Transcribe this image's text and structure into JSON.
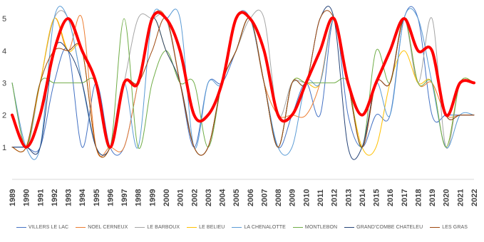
{
  "chart_data": {
    "type": "line",
    "title": "",
    "xlabel": "",
    "ylabel": "",
    "x": [
      "1989",
      "1990",
      "1991",
      "1992",
      "1993",
      "1994",
      "1995",
      "1996",
      "1997",
      "1998",
      "1999",
      "2000",
      "2001",
      "2002",
      "2003",
      "2004",
      "2005",
      "2006",
      "2007",
      "2008",
      "2009",
      "2010",
      "2011",
      "2012",
      "2013",
      "2014",
      "2015",
      "2016",
      "2017",
      "2018",
      "2019",
      "2020",
      "2021",
      "2022"
    ],
    "yticks": [
      1,
      2,
      3,
      4,
      5
    ],
    "ylim": [
      0,
      5.4
    ],
    "grid": false,
    "legend_position": "bottom",
    "series": [
      {
        "name": "VILLERS LE LAC",
        "color": "#4472c4",
        "width": 1,
        "values": [
          1,
          1,
          1,
          3,
          4,
          1,
          3,
          1,
          1,
          3,
          5,
          5,
          3,
          1,
          3,
          3,
          4,
          5,
          3,
          1,
          2,
          3,
          2,
          5,
          2,
          1,
          2,
          2,
          5,
          5,
          2,
          2,
          2,
          2
        ]
      },
      {
        "name": "NOEL CERNEUX",
        "color": "#ed7d31",
        "width": 1,
        "values": [
          1,
          1,
          3,
          5,
          4,
          5,
          1,
          1,
          1,
          3,
          5,
          5,
          3,
          1,
          1,
          3,
          4,
          5,
          3,
          2,
          2,
          2,
          3,
          5,
          3,
          1,
          3,
          3,
          5,
          3,
          3,
          2,
          2,
          2
        ]
      },
      {
        "name": "LE BARBOUX",
        "color": "#a5a5a5",
        "width": 1,
        "values": [
          3,
          1,
          3,
          5,
          5,
          3,
          1,
          1,
          3,
          5,
          5,
          5,
          3,
          1,
          1,
          3,
          4,
          5,
          5,
          2,
          3,
          3,
          3,
          5,
          3,
          1,
          3,
          3,
          5,
          3,
          5,
          1,
          3,
          3
        ]
      },
      {
        "name": "LE BELIEU",
        "color": "#ffc000",
        "width": 1,
        "values": [
          1,
          1,
          3,
          5,
          4,
          4,
          1,
          1,
          3,
          3,
          5,
          4,
          3,
          1,
          1,
          3,
          4,
          5,
          3,
          1,
          3,
          3,
          3,
          5,
          3,
          1,
          1,
          3,
          4,
          3,
          3,
          1,
          3,
          3
        ]
      },
      {
        "name": "LA CHENALOTTE",
        "color": "#5b9bd5",
        "width": 1,
        "values": [
          3,
          1,
          1,
          5,
          5,
          3,
          1,
          1,
          3,
          1,
          5,
          5,
          5,
          1,
          3,
          3,
          5,
          5,
          3,
          1,
          1,
          3,
          3,
          5,
          3,
          1,
          3,
          2,
          5,
          5,
          3,
          1,
          2,
          2
        ]
      },
      {
        "name": "MONTLEBON",
        "color": "#70ad47",
        "width": 1,
        "values": [
          3,
          1,
          3,
          3,
          3,
          3,
          3,
          1,
          5,
          1,
          3,
          4,
          3,
          3,
          1,
          3,
          4,
          5,
          3,
          1,
          3,
          3,
          3,
          3,
          3,
          1,
          4,
          3,
          5,
          3,
          3,
          1,
          3,
          3
        ]
      },
      {
        "name": "GRAND'COMBE CHATELEU",
        "color": "#264478",
        "width": 1,
        "values": [
          1,
          1,
          1,
          4,
          4,
          3,
          1,
          1,
          3,
          3,
          5,
          4,
          3,
          1,
          1,
          3,
          4,
          5,
          3,
          1,
          3,
          3,
          5,
          5,
          1,
          1,
          3,
          3,
          5,
          4,
          4,
          2,
          2,
          2
        ]
      },
      {
        "name": "LES GRAS",
        "color": "#9e480e",
        "width": 1,
        "values": [
          1,
          1,
          3,
          4,
          4,
          4,
          1,
          1,
          3,
          3,
          4,
          5,
          3,
          1,
          1,
          3,
          4,
          5,
          3,
          1,
          3,
          3,
          5,
          5,
          3,
          1,
          3,
          3,
          5,
          4,
          4,
          2,
          2,
          2
        ]
      },
      {
        "name": "",
        "color": "#ff0000",
        "width": 4,
        "in_legend": false,
        "values": [
          2,
          1,
          2,
          4,
          5,
          4,
          3,
          1,
          3,
          3,
          5,
          5,
          4,
          2,
          2,
          3,
          5,
          5,
          4,
          2,
          2,
          3,
          4,
          5,
          3,
          2,
          3,
          4,
          5,
          4,
          4,
          2,
          3,
          3
        ]
      }
    ]
  }
}
